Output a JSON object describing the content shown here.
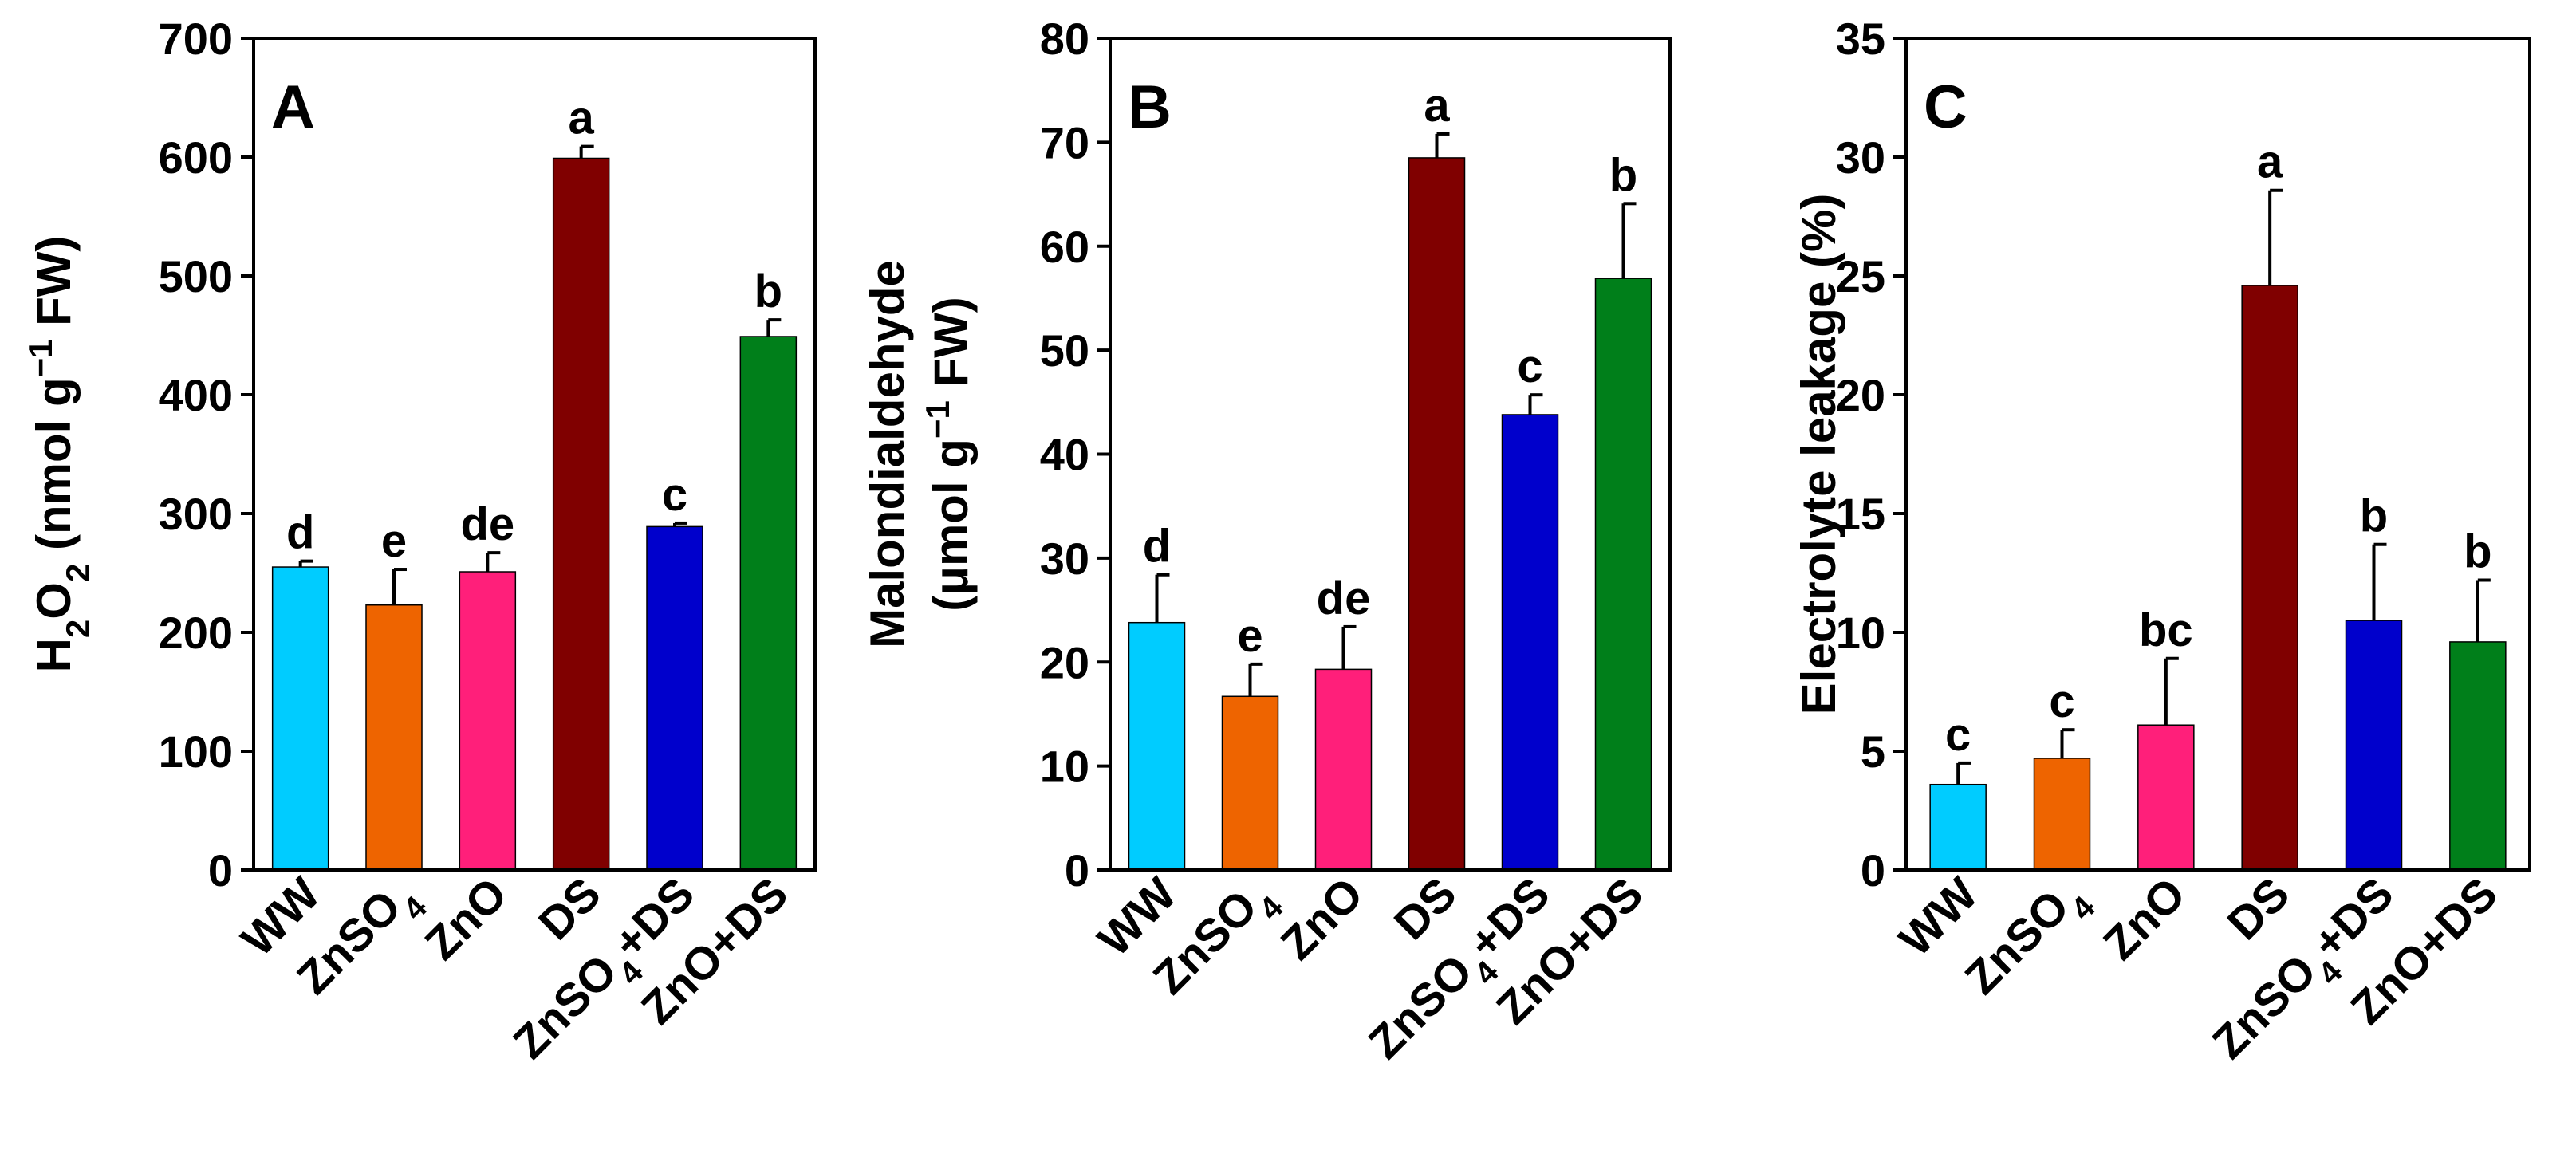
{
  "colors": [
    "#00ccff",
    "#ee6400",
    "#ff1f7a",
    "#800000",
    "#0000cc",
    "#007f1a"
  ],
  "chart_data": [
    {
      "type": "bar",
      "panel_label": "A",
      "categories": [
        {
          "main": "WW",
          "sub": "",
          "tail": ""
        },
        {
          "main": "ZnSO",
          "sub": "4",
          "tail": ""
        },
        {
          "main": "ZnO",
          "sub": "",
          "tail": ""
        },
        {
          "main": "DS",
          "sub": "",
          "tail": ""
        },
        {
          "main": "ZnSO",
          "sub": "4",
          "tail": "+DS"
        },
        {
          "main": "ZnO+DS",
          "sub": "",
          "tail": ""
        }
      ],
      "values": [
        255,
        223,
        251,
        599,
        289,
        449
      ],
      "errors": [
        5,
        30,
        16,
        10,
        3,
        14
      ],
      "letters": [
        "d",
        "e",
        "de",
        "a",
        "c",
        "b"
      ],
      "ylim": [
        0,
        700
      ],
      "yticks": [
        "0",
        "100",
        "200",
        "300",
        "400",
        "500",
        "600",
        "700"
      ],
      "ylabel": {
        "parts": [
          {
            "t": "H",
            "s": "base"
          },
          {
            "t": "2",
            "s": "sub"
          },
          {
            "t": "O",
            "s": "base"
          },
          {
            "t": "2",
            "s": "sub"
          },
          {
            "t": " (nmol g",
            "s": "base"
          },
          {
            "t": "−1",
            "s": "sup"
          },
          {
            "t": " FW)",
            "s": "base"
          }
        ]
      }
    },
    {
      "type": "bar",
      "panel_label": "B",
      "categories": [
        {
          "main": "WW",
          "sub": "",
          "tail": ""
        },
        {
          "main": "ZnSO",
          "sub": "4",
          "tail": ""
        },
        {
          "main": "ZnO",
          "sub": "",
          "tail": ""
        },
        {
          "main": "DS",
          "sub": "",
          "tail": ""
        },
        {
          "main": "ZnSO",
          "sub": "4",
          "tail": "+DS"
        },
        {
          "main": "ZnO+DS",
          "sub": "",
          "tail": ""
        }
      ],
      "values": [
        23.8,
        16.7,
        19.3,
        68.5,
        43.8,
        56.9
      ],
      "errors": [
        4.6,
        3.1,
        4.1,
        2.3,
        1.9,
        7.2
      ],
      "letters": [
        "d",
        "e",
        "de",
        "a",
        "c",
        "b"
      ],
      "ylim": [
        0,
        80
      ],
      "yticks": [
        "0",
        "10",
        "20",
        "30",
        "40",
        "50",
        "60",
        "70",
        "80"
      ],
      "ylabel": {
        "line1": [
          {
            "t": "Malondialdehyde",
            "s": "base"
          }
        ],
        "line2": [
          {
            "t": "(μmol g",
            "s": "base"
          },
          {
            "t": "−1",
            "s": "sup"
          },
          {
            "t": " FW)",
            "s": "base"
          }
        ]
      }
    },
    {
      "type": "bar",
      "panel_label": "C",
      "categories": [
        {
          "main": "WW",
          "sub": "",
          "tail": ""
        },
        {
          "main": "ZnSO",
          "sub": "4",
          "tail": ""
        },
        {
          "main": "ZnO",
          "sub": "",
          "tail": ""
        },
        {
          "main": "DS",
          "sub": "",
          "tail": ""
        },
        {
          "main": "ZnSO",
          "sub": "4",
          "tail": "+DS"
        },
        {
          "main": "ZnO+DS",
          "sub": "",
          "tail": ""
        }
      ],
      "values": [
        3.6,
        4.7,
        6.1,
        24.6,
        10.5,
        9.6
      ],
      "errors": [
        0.9,
        1.2,
        2.8,
        4.0,
        3.2,
        2.6
      ],
      "letters": [
        "c",
        "c",
        "bc",
        "a",
        "b",
        "b"
      ],
      "ylim": [
        0,
        35
      ],
      "yticks": [
        "0",
        "5",
        "10",
        "15",
        "20",
        "25",
        "30",
        "35"
      ],
      "ylabel": {
        "parts": [
          {
            "t": "Electrolyte leakage (%)",
            "s": "base"
          }
        ]
      }
    }
  ]
}
